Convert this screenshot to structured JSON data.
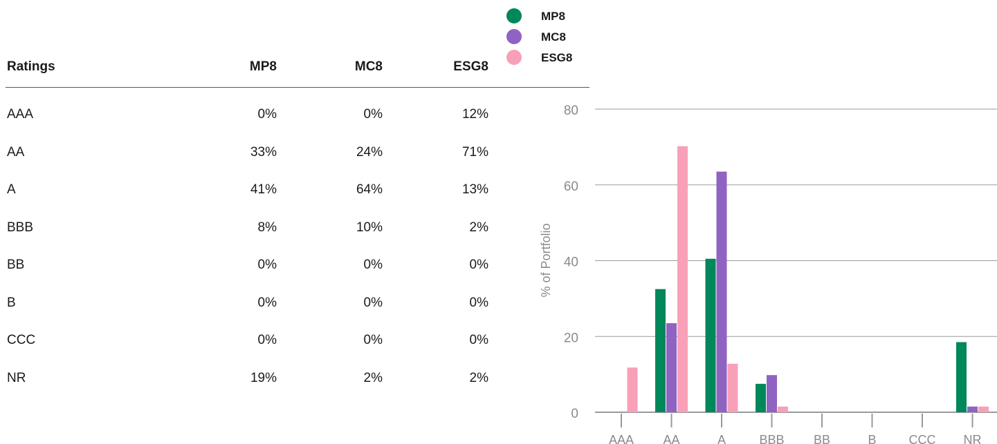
{
  "table": {
    "headers": [
      "Ratings",
      "MP8",
      "MC8",
      "ESG8"
    ],
    "rows": [
      {
        "rating": "AAA",
        "mp8": "0%",
        "mc8": "0%",
        "esg8": "12%"
      },
      {
        "rating": "AA",
        "mp8": "33%",
        "mc8": "24%",
        "esg8": "71%"
      },
      {
        "rating": "A",
        "mp8": "41%",
        "mc8": "64%",
        "esg8": "13%"
      },
      {
        "rating": "BBB",
        "mp8": "8%",
        "mc8": "10%",
        "esg8": "2%"
      },
      {
        "rating": "BB",
        "mp8": "0%",
        "mc8": "0%",
        "esg8": "0%"
      },
      {
        "rating": "B",
        "mp8": "0%",
        "mc8": "0%",
        "esg8": "0%"
      },
      {
        "rating": "CCC",
        "mp8": "0%",
        "mc8": "0%",
        "esg8": "0%"
      },
      {
        "rating": "NR",
        "mp8": "19%",
        "mc8": "2%",
        "esg8": "2%"
      }
    ]
  },
  "legend": [
    {
      "label": "MP8",
      "color": "#00875a"
    },
    {
      "label": "MC8",
      "color": "#8f63c2"
    },
    {
      "label": "ESG8",
      "color": "#f8a0b8"
    }
  ],
  "chart_data": {
    "type": "bar",
    "categories": [
      "AAA",
      "AA",
      "A",
      "BBB",
      "BB",
      "B",
      "CCC",
      "NR"
    ],
    "series": [
      {
        "name": "MP8",
        "color": "#00875a",
        "values": [
          0,
          32.5,
          40.5,
          7.5,
          0,
          0,
          0,
          18.5
        ]
      },
      {
        "name": "MC8",
        "color": "#8f63c2",
        "values": [
          0,
          23.5,
          63.5,
          9.8,
          0,
          0,
          0,
          1.5
        ]
      },
      {
        "name": "ESG8",
        "color": "#f8a0b8",
        "values": [
          11.8,
          70.2,
          12.8,
          1.5,
          0,
          0,
          0,
          1.5
        ]
      }
    ],
    "ylabel": "% of Portfolio",
    "ylim": [
      0,
      80
    ],
    "yticks": [
      "0",
      "20",
      "40",
      "60",
      "80"
    ],
    "grid": true,
    "legend_position": "top"
  }
}
